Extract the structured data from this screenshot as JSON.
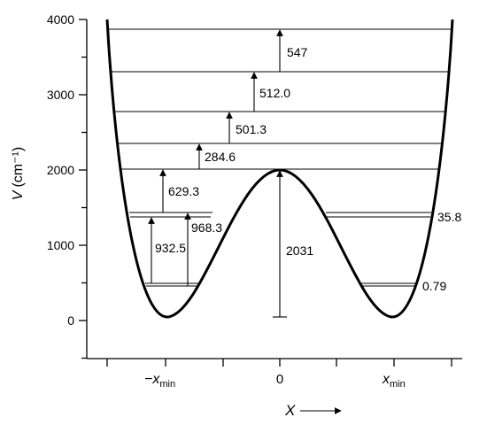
{
  "chart_data": {
    "type": "line",
    "ylabel": "V (cm⁻¹)",
    "xlabel": "X",
    "ylim": [
      0,
      4000
    ],
    "yticks": [
      0,
      1000,
      2000,
      3000,
      4000
    ],
    "xtick_labels": [
      "−x_min",
      "0",
      "x_min"
    ],
    "barrier_height": 2031,
    "energy_levels": [
      {
        "value": 460,
        "span": "double-low"
      },
      {
        "value": 470,
        "span": "double-high"
      },
      {
        "value": 1340,
        "span": "double-low"
      },
      {
        "value": 1430,
        "span": "double-high"
      },
      {
        "value": 2010,
        "span": "full"
      },
      {
        "value": 2340,
        "span": "full"
      },
      {
        "value": 2770,
        "span": "full"
      },
      {
        "value": 3290,
        "span": "full"
      },
      {
        "value": 3870,
        "span": "full"
      }
    ],
    "transitions": [
      {
        "label": "932.5",
        "from": 470,
        "to": 1430
      },
      {
        "label": "968.3",
        "from": 460,
        "to": 1430
      },
      {
        "label": "629.3",
        "from": 1430,
        "to": 2010
      },
      {
        "label": "284.6",
        "from": 2010,
        "to": 2340
      },
      {
        "label": "501.3",
        "from": 2340,
        "to": 2770
      },
      {
        "label": "512.0",
        "from": 2770,
        "to": 3290
      },
      {
        "label": "547",
        "from": 3290,
        "to": 3870
      },
      {
        "label": "2031",
        "from": 0,
        "to": 2031
      }
    ],
    "splitting_labels": [
      {
        "label": "35.8",
        "level": 1430
      },
      {
        "label": "0.79",
        "level": 465
      }
    ]
  },
  "labels": {
    "y_axis_label": "V",
    "y_axis_unit": "(cm⁻¹)",
    "x_axis_label": "X",
    "y_tick_0": "0",
    "y_tick_1000": "1000",
    "y_tick_2000": "2000",
    "y_tick_3000": "3000",
    "y_tick_4000": "4000",
    "x_tick_neg_xmin": "−x",
    "x_tick_zero": "0",
    "x_tick_xmin": "x",
    "x_tick_sub": "min",
    "t_547": "547",
    "t_512": "512.0",
    "t_501": "501.3",
    "t_284": "284.6",
    "t_629": "629.3",
    "t_968": "968.3",
    "t_932": "932.5",
    "t_2031": "2031",
    "s_358": "35.8",
    "s_079": "0.79"
  }
}
